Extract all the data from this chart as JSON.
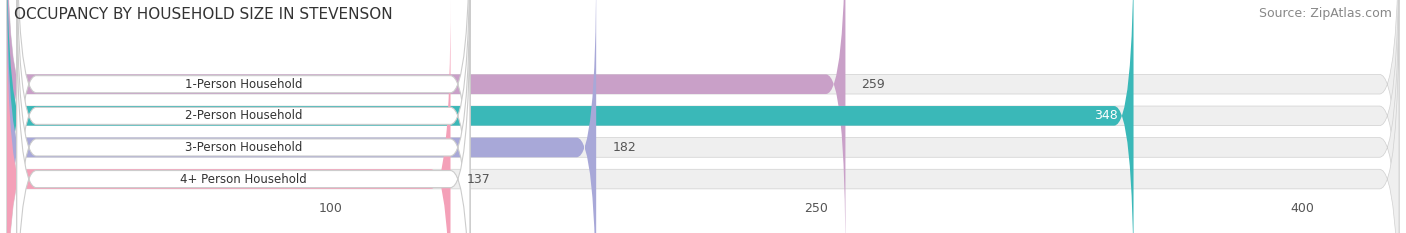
{
  "title": "OCCUPANCY BY HOUSEHOLD SIZE IN STEVENSON",
  "source": "Source: ZipAtlas.com",
  "categories": [
    "1-Person Household",
    "2-Person Household",
    "3-Person Household",
    "4+ Person Household"
  ],
  "values": [
    259,
    348,
    182,
    137
  ],
  "bar_colors": [
    "#c9a0c8",
    "#3ab8b8",
    "#a8a8d8",
    "#f4a0b8"
  ],
  "bar_bg_color": "#e8e8e8",
  "xticks": [
    100,
    250,
    400
  ],
  "xmax": 430,
  "label_bg_color": "#ffffff",
  "label_border_color": "#dddddd",
  "title_fontsize": 11,
  "source_fontsize": 9,
  "bar_label_fontsize": 8.5,
  "value_label_fontsize": 9,
  "tick_fontsize": 9,
  "bar_height": 0.62,
  "row_bg_color": "#efefef",
  "background_color": "#ffffff",
  "value_inside_color": "#ffffff",
  "value_outside_color": "#555555"
}
